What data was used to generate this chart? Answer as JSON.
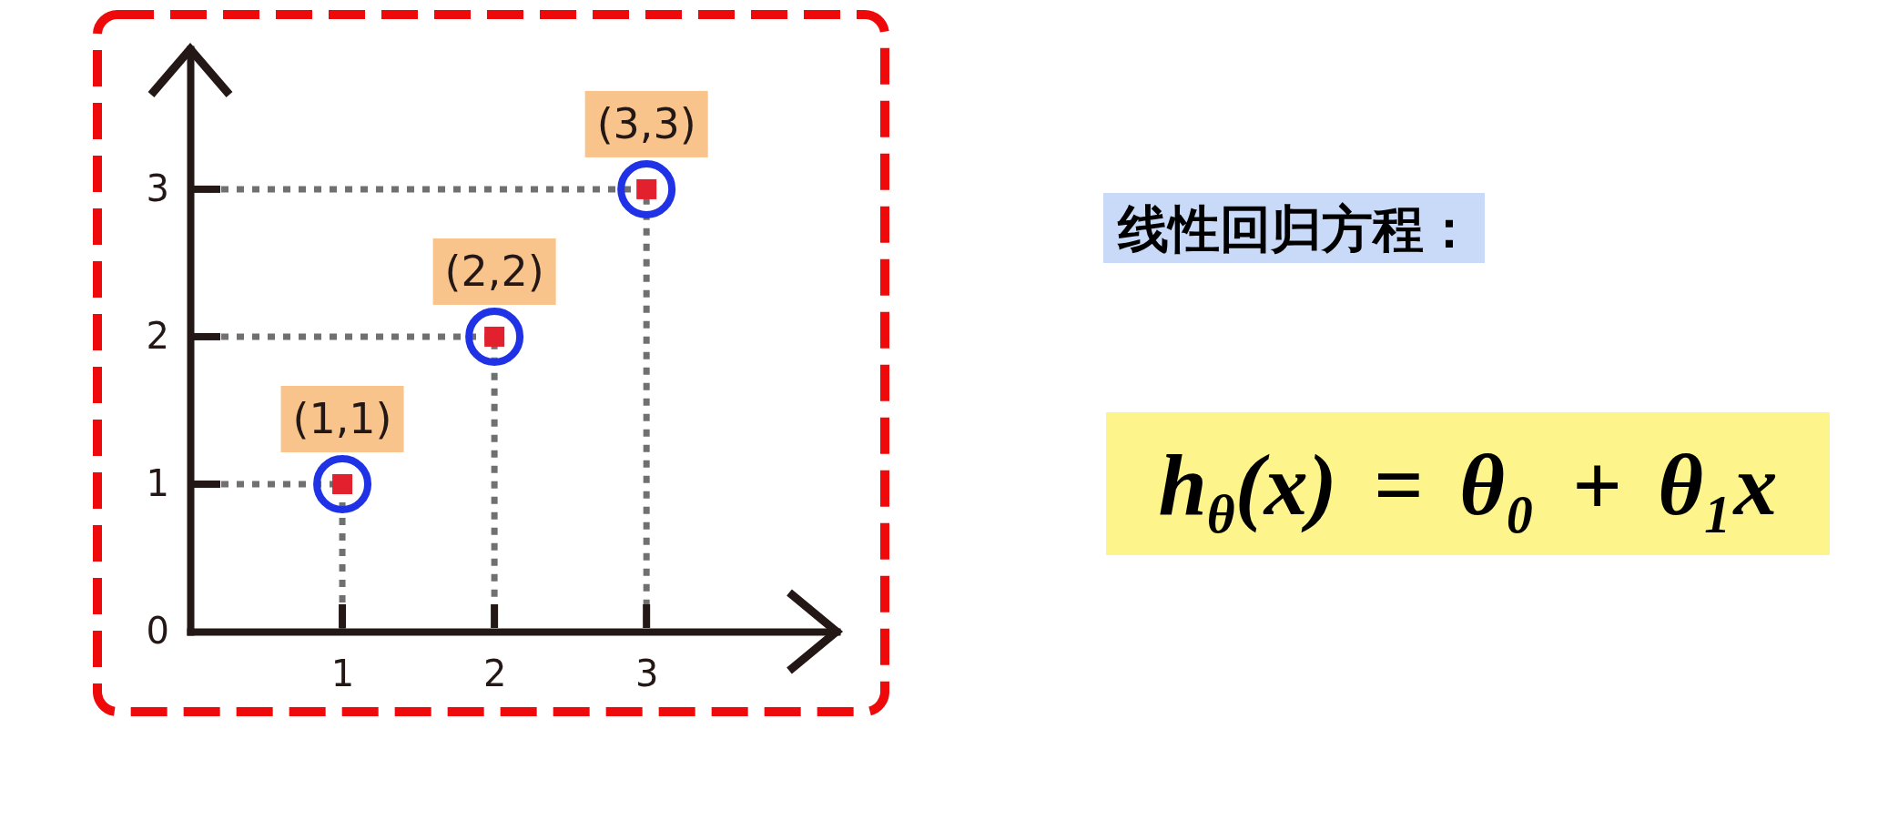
{
  "chart_data": {
    "type": "scatter",
    "x": [
      1,
      2,
      3
    ],
    "xlim": [
      0,
      4.25
    ],
    "xticks": [
      1,
      2,
      3
    ],
    "ylim": [
      0,
      3.95
    ],
    "yticks": [
      0,
      1,
      2,
      3
    ],
    "series": [
      {
        "type": "line",
        "color": "#707070",
        "x": [
          0,
          1,
          1
        ],
        "values": [
          1,
          1,
          0
        ],
        "line_style": "dotted"
      },
      {
        "type": "line",
        "color": "#707070",
        "x": [
          0,
          2,
          2
        ],
        "values": [
          2,
          2,
          0
        ],
        "line_style": "dotted"
      },
      {
        "type": "line",
        "color": "#707070",
        "x": [
          0,
          3,
          3
        ],
        "values": [
          3,
          3,
          0
        ],
        "line_style": "dotted"
      },
      {
        "color": "#1f32e6",
        "values": [
          1,
          2,
          3
        ],
        "marker": "circle"
      },
      {
        "color": "#e3202e",
        "values": [
          1,
          2,
          3
        ],
        "marker": "square"
      }
    ],
    "annotations": [
      {
        "text": "(1,1)",
        "x": 1,
        "y": 1
      },
      {
        "text": "(2,2)",
        "x": 2,
        "y": 2
      },
      {
        "text": "(3,3)",
        "x": 3,
        "y": 3
      },
      "线性回归方程：",
      "h$_{θ}$(x) = θ₀ + θ₁x"
    ]
  }
}
